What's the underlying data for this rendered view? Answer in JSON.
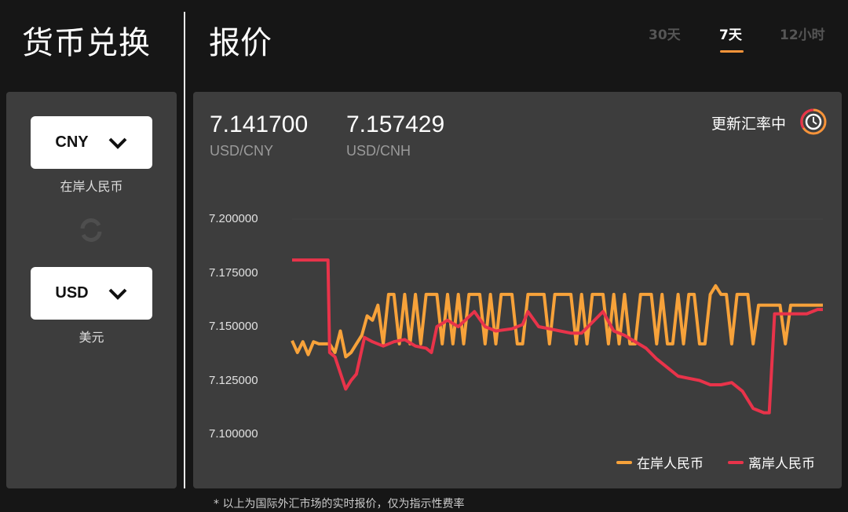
{
  "left": {
    "title": "货币兑换",
    "from": {
      "code": "CNY",
      "label": "在岸人民币"
    },
    "to": {
      "code": "USD",
      "label": "美元"
    }
  },
  "main": {
    "title": "报价",
    "tabs": [
      {
        "label": "30天",
        "active": false
      },
      {
        "label": "7天",
        "active": true
      },
      {
        "label": "12小时",
        "active": false
      }
    ],
    "quotes": [
      {
        "value": "7.141700",
        "pair": "USD/CNY"
      },
      {
        "value": "7.157429",
        "pair": "USD/CNH"
      }
    ],
    "status": "更新汇率中",
    "footnote": "* 以上为国际外汇市场的实时报价，仅为指示性费率"
  },
  "colors": {
    "accent": "#f7943a",
    "cny": "#f7a23a",
    "cnh": "#e8334a"
  },
  "chart_data": {
    "type": "line",
    "ylim": [
      7.1,
      7.2
    ],
    "yticks": [
      "7.200000",
      "7.175000",
      "7.150000",
      "7.125000",
      "7.100000"
    ],
    "grid": false,
    "legend": "bottom-right",
    "series": [
      {
        "name": "在岸人民币",
        "color": "#f7a23a",
        "values": [
          7.1435,
          7.138,
          7.143,
          7.137,
          7.143,
          7.142,
          7.142,
          7.142,
          7.138,
          7.148,
          7.136,
          7.138,
          7.142,
          7.146,
          7.155,
          7.153,
          7.16,
          7.142,
          7.165,
          7.165,
          7.142,
          7.165,
          7.142,
          7.165,
          7.142,
          7.165,
          7.165,
          7.165,
          7.142,
          7.165,
          7.142,
          7.165,
          7.142,
          7.165,
          7.165,
          7.165,
          7.142,
          7.165,
          7.142,
          7.165,
          7.165,
          7.165,
          7.142,
          7.142,
          7.165,
          7.165,
          7.165,
          7.165,
          7.142,
          7.165,
          7.165,
          7.165,
          7.165,
          7.142,
          7.165,
          7.142,
          7.165,
          7.165,
          7.165,
          7.142,
          7.165,
          7.142,
          7.165,
          7.142,
          7.142,
          7.165,
          7.165,
          7.165,
          7.142,
          7.165,
          7.142,
          7.142,
          7.165,
          7.142,
          7.165,
          7.165,
          7.142,
          7.142,
          7.165,
          7.169,
          7.165,
          7.165,
          7.142,
          7.165,
          7.165,
          7.165,
          7.142,
          7.16,
          7.16,
          7.16,
          7.16,
          7.16,
          7.142,
          7.16,
          7.16,
          7.16,
          7.16,
          7.16,
          7.16,
          7.16
        ]
      },
      {
        "name": "离岸人民币",
        "color": "#e8334a",
        "points": [
          [
            0,
            7.181
          ],
          [
            6.7,
            7.181
          ],
          [
            7,
            7.138
          ],
          [
            8,
            7.136
          ],
          [
            10,
            7.121
          ],
          [
            11,
            7.125
          ],
          [
            12,
            7.128
          ],
          [
            13.5,
            7.145
          ],
          [
            15,
            7.143
          ],
          [
            17,
            7.141
          ],
          [
            19,
            7.143
          ],
          [
            21,
            7.144
          ],
          [
            23,
            7.141
          ],
          [
            25,
            7.14
          ],
          [
            26,
            7.138
          ],
          [
            27,
            7.15
          ],
          [
            29,
            7.153
          ],
          [
            31,
            7.15
          ],
          [
            34,
            7.157
          ],
          [
            36,
            7.15
          ],
          [
            38,
            7.148
          ],
          [
            41,
            7.149
          ],
          [
            43,
            7.151
          ],
          [
            44,
            7.157
          ],
          [
            46,
            7.15
          ],
          [
            48,
            7.149
          ],
          [
            50,
            7.148
          ],
          [
            52,
            7.147
          ],
          [
            54,
            7.147
          ],
          [
            56,
            7.152
          ],
          [
            58,
            7.157
          ],
          [
            60,
            7.148
          ],
          [
            62,
            7.146
          ],
          [
            64,
            7.143
          ],
          [
            66,
            7.14
          ],
          [
            68,
            7.135
          ],
          [
            70,
            7.131
          ],
          [
            72,
            7.127
          ],
          [
            74,
            7.126
          ],
          [
            76,
            7.125
          ],
          [
            78,
            7.123
          ],
          [
            80,
            7.123
          ],
          [
            82,
            7.124
          ],
          [
            84,
            7.12
          ],
          [
            86,
            7.112
          ],
          [
            88,
            7.11
          ],
          [
            89,
            7.11
          ],
          [
            90,
            7.156
          ],
          [
            92,
            7.156
          ],
          [
            96,
            7.156
          ],
          [
            98,
            7.158
          ],
          [
            99,
            7.158
          ]
        ]
      }
    ]
  }
}
